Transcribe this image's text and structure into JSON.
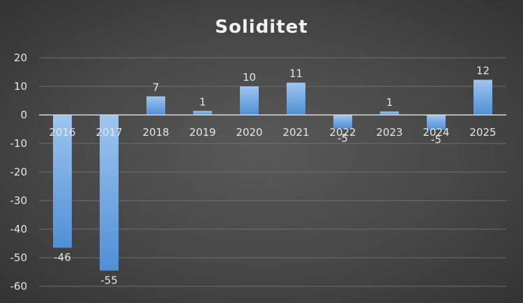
{
  "chart_data": {
    "type": "bar",
    "title": "Soliditet",
    "xlabel": "",
    "ylabel": "",
    "categories": [
      "2016",
      "2017",
      "2018",
      "2019",
      "2020",
      "2021",
      "2022",
      "2023",
      "2024",
      "2025"
    ],
    "values": [
      -46.5,
      -54.5,
      6.5,
      1.4,
      10,
      11.3,
      -4.8,
      1.2,
      -5.2,
      12.3
    ],
    "data_labels": [
      "-46",
      "-55",
      "7",
      "1",
      "10",
      "11",
      "-5",
      "1",
      "-5",
      "12"
    ],
    "ylim": [
      -60,
      20
    ],
    "yticks": [
      20,
      10,
      0,
      -10,
      -20,
      -30,
      -40,
      -50,
      -60
    ],
    "grid": true,
    "legend": "none",
    "colors": {
      "bar_top": "#9ec5ee",
      "bar_bottom": "#4f8fd6",
      "text": "#e6e6e6"
    }
  }
}
